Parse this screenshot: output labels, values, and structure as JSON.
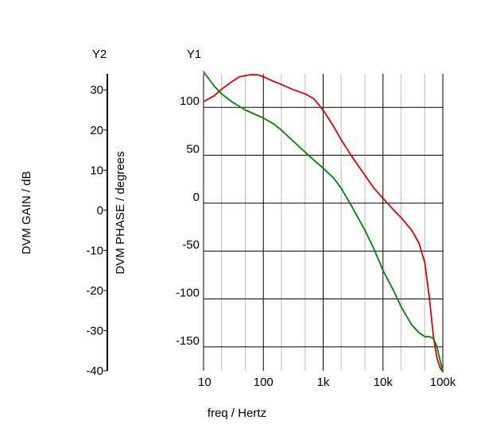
{
  "chart_data": {
    "type": "line",
    "x_scale": "log",
    "x_ticks": [
      {
        "value": 10,
        "label": "10"
      },
      {
        "value": 100,
        "label": "100"
      },
      {
        "value": 1000,
        "label": "1k"
      },
      {
        "value": 10000,
        "label": "10k"
      },
      {
        "value": 100000,
        "label": "100k"
      }
    ],
    "xlabel": "freq / Hertz",
    "xlim": [
      10,
      100000
    ],
    "grid": true,
    "y1": {
      "caption": "Y1",
      "label": "DVM PHASE / degrees",
      "ylim": [
        -175,
        135
      ],
      "ticks": [
        {
          "value": 100,
          "label": "100"
        },
        {
          "value": 50,
          "label": "50"
        },
        {
          "value": 0,
          "label": "0"
        },
        {
          "value": -50,
          "label": "-50"
        },
        {
          "value": -100,
          "label": "-100"
        },
        {
          "value": -150,
          "label": "-150"
        }
      ]
    },
    "y2": {
      "caption": "Y2",
      "label": "DVM GAIN / dB",
      "ylim": [
        -40,
        34
      ],
      "ticks": [
        {
          "value": 30,
          "label": "30"
        },
        {
          "value": 20,
          "label": "20"
        },
        {
          "value": 10,
          "label": "10"
        },
        {
          "value": 0,
          "label": "0"
        },
        {
          "value": -10,
          "label": "-10"
        },
        {
          "value": -20,
          "label": "-20"
        },
        {
          "value": -30,
          "label": "-30"
        },
        {
          "value": -40,
          "label": "-40"
        }
      ]
    },
    "series": [
      {
        "axis": "y1",
        "color": "#dd0000",
        "x": [
          10,
          15,
          20,
          30,
          40,
          60,
          80,
          100,
          150,
          200,
          300,
          500,
          700,
          1000,
          1500,
          2000,
          3000,
          5000,
          7000,
          10000,
          15000,
          20000,
          30000,
          40000,
          50000,
          60000,
          70000,
          80000,
          90000,
          100000
        ],
        "y": [
          106,
          112,
          119,
          127,
          132,
          134,
          134,
          132,
          127,
          124,
          119,
          114,
          109,
          97,
          80,
          66,
          49,
          29,
          16,
          5,
          -7,
          -15,
          -28,
          -42,
          -62,
          -100,
          -140,
          -162,
          -172,
          -176
        ]
      },
      {
        "axis": "y2",
        "color": "#008000",
        "x": [
          10,
          15,
          20,
          30,
          50,
          70,
          100,
          150,
          200,
          300,
          500,
          700,
          1000,
          1500,
          2000,
          3000,
          5000,
          7000,
          10000,
          15000,
          20000,
          30000,
          40000,
          50000,
          60000,
          70000,
          80000,
          90000,
          100000
        ],
        "y": [
          34.5,
          31,
          29,
          27,
          25,
          24,
          23,
          21.5,
          20,
          17.5,
          14.5,
          12.5,
          10.5,
          8,
          5.5,
          1,
          -5,
          -9.5,
          -15,
          -20,
          -24,
          -28.5,
          -30.5,
          -31.5,
          -31.5,
          -32,
          -34,
          -37.5,
          -40
        ]
      }
    ]
  }
}
